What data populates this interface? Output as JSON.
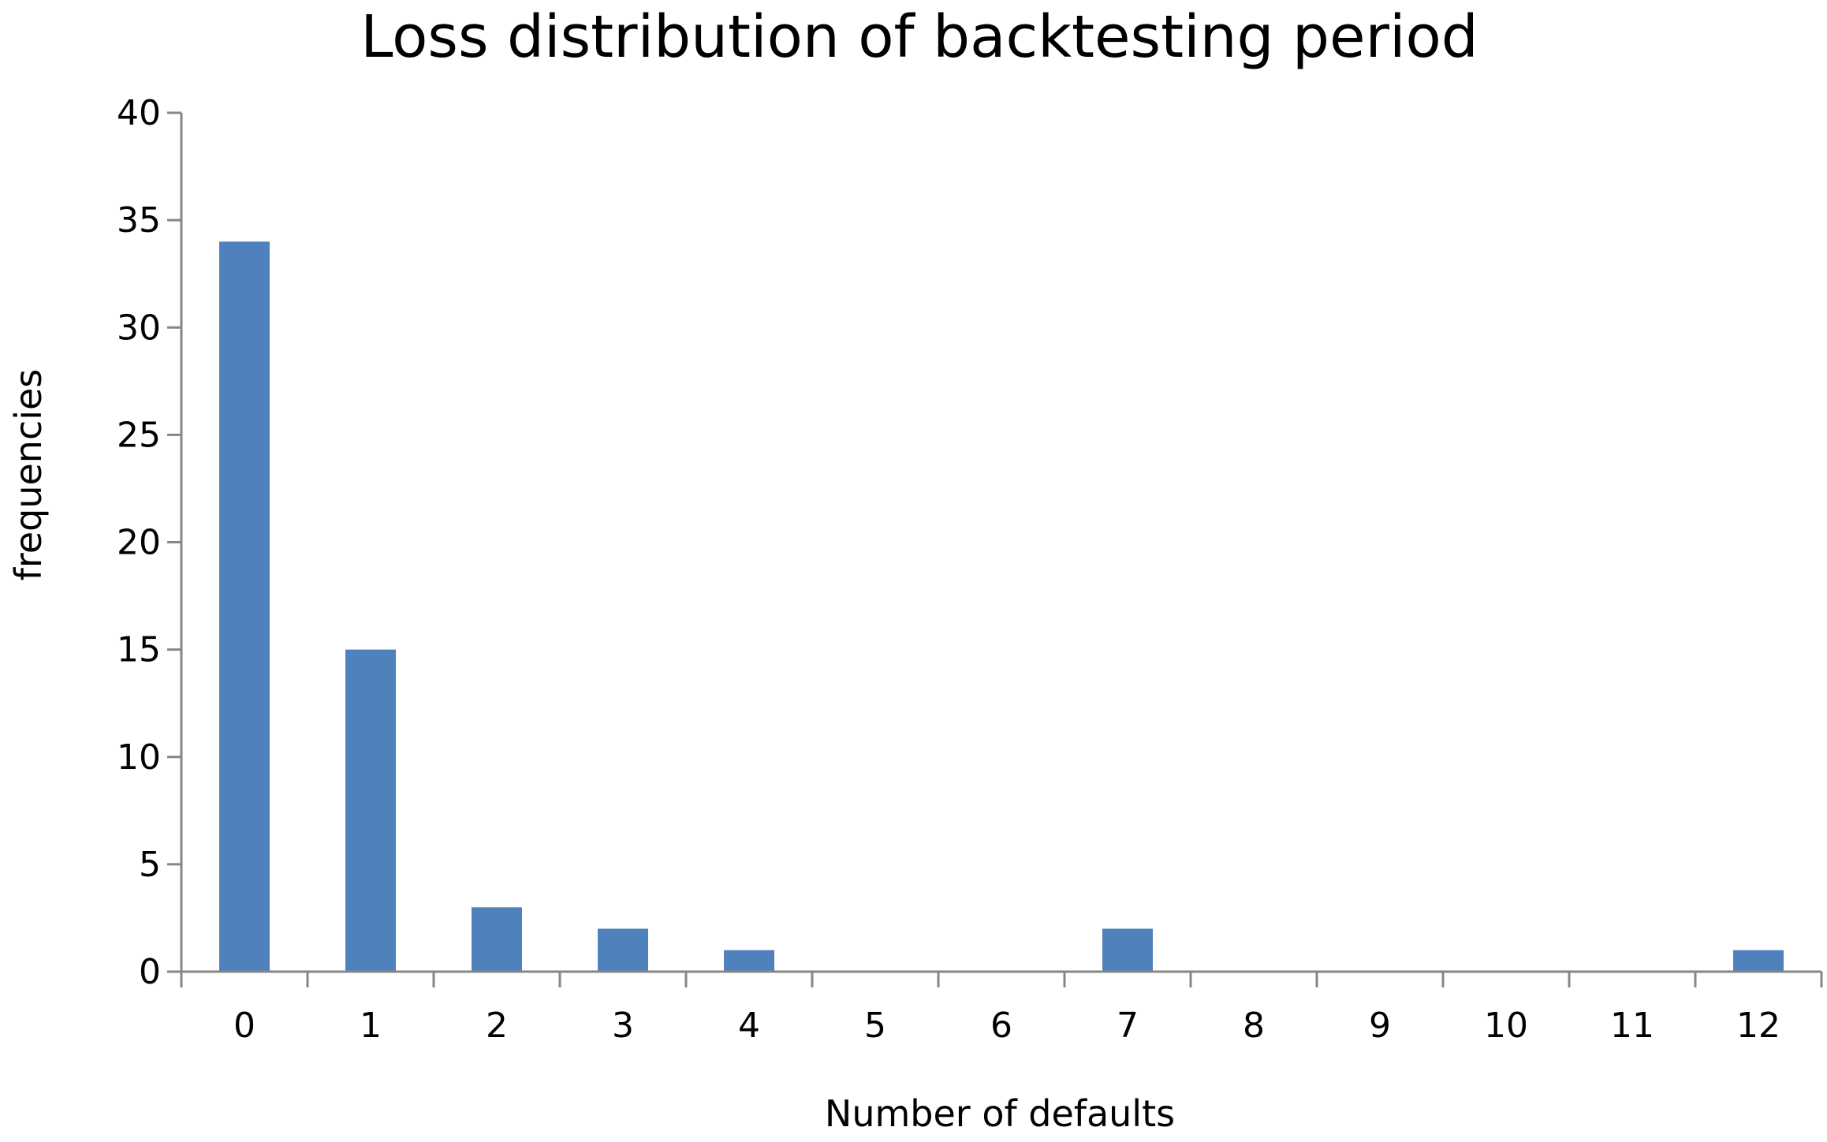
{
  "chart_data": {
    "type": "bar",
    "title": "Loss distribution of backtesting period",
    "xlabel": "Number of defaults",
    "ylabel": "frequencies",
    "categories": [
      "0",
      "1",
      "2",
      "3",
      "4",
      "5",
      "6",
      "7",
      "8",
      "9",
      "10",
      "11",
      "12"
    ],
    "values": [
      34,
      15,
      3,
      2,
      1,
      0,
      0,
      2,
      0,
      0,
      0,
      0,
      1
    ],
    "ylim": [
      0,
      40
    ],
    "yticks": [
      0,
      5,
      10,
      15,
      20,
      25,
      30,
      35,
      40
    ],
    "grid": false,
    "legend": "none",
    "bar_color": "#4f81bd",
    "axis_color": "#868686"
  }
}
